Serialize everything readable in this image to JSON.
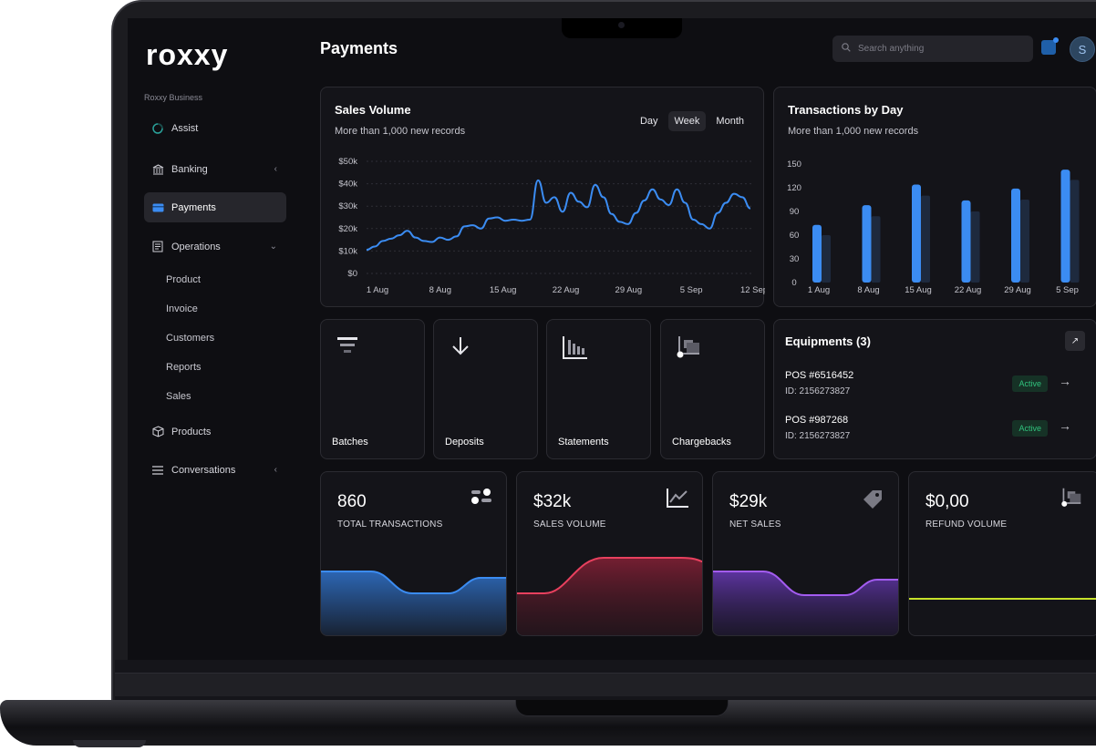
{
  "brand": {
    "logo": "roxxy",
    "section_label": "Roxxy Business"
  },
  "nav": {
    "assist": "Assist",
    "banking": "Banking",
    "payments": "Payments",
    "operations": "Operations",
    "operations_sub": [
      "Product",
      "Invoice",
      "Customers",
      "Reports",
      "Sales"
    ],
    "products": "Products",
    "conversations": "Conversations"
  },
  "header": {
    "title": "Payments",
    "search_placeholder": "Search anything",
    "avatar_initial": "S"
  },
  "sales_volume": {
    "title": "Sales Volume",
    "subtitle": "More than 1,000 new records",
    "range_options": [
      "Day",
      "Week",
      "Month"
    ],
    "selected_range": "Week"
  },
  "transactions_by_day": {
    "title": "Transactions by Day",
    "subtitle": "More than 1,000 new records"
  },
  "chart_data": [
    {
      "type": "line",
      "title": "Sales Volume",
      "x_ticks": [
        "1 Aug",
        "8 Aug",
        "15 Aug",
        "22 Aug",
        "29 Aug",
        "5 Sep",
        "12 Sep"
      ],
      "y_ticks": [
        "$0",
        "$10k",
        "$20k",
        "$30k",
        "$40k",
        "$50k"
      ],
      "ylim": [
        0,
        50000
      ],
      "grid": true,
      "series": [
        {
          "values": [
            10500,
            12000,
            14500,
            15500,
            17000,
            19000,
            16000,
            14500,
            14000,
            16000,
            15000,
            16500,
            21000,
            21500,
            20000,
            24500,
            25000,
            23500,
            24000,
            23500,
            24000,
            41500,
            31500,
            34000,
            27500,
            36000,
            32000,
            29500,
            39500,
            34000,
            26500,
            23000,
            22000,
            27000,
            32500,
            37500,
            33000,
            30500,
            37500,
            31500,
            24000,
            22000,
            20000,
            27000,
            31500,
            35500,
            34000,
            29000
          ]
        }
      ],
      "color": "#3b8cf2"
    },
    {
      "type": "bar",
      "title": "Transactions by Day",
      "categories": [
        "1 Aug",
        "8 Aug",
        "15 Aug",
        "22 Aug",
        "29 Aug",
        "5 Sep"
      ],
      "y_ticks": [
        "0",
        "30",
        "60",
        "90",
        "120",
        "150"
      ],
      "ylim": [
        0,
        150
      ],
      "series": [
        {
          "values": [
            73,
            98,
            124,
            104,
            119,
            143
          ],
          "color": "#3b8cf2"
        },
        {
          "values": [
            60,
            84,
            110,
            90,
            105,
            130
          ],
          "color": "#1e2a3e"
        }
      ]
    }
  ],
  "tiles": [
    {
      "label": "Batches",
      "icon": "filter-icon"
    },
    {
      "label": "Deposits",
      "icon": "arrow-down-icon"
    },
    {
      "label": "Statements",
      "icon": "bar-chart-icon"
    },
    {
      "label": "Chargebacks",
      "icon": "dolly-icon"
    }
  ],
  "equipments": {
    "title": "Equipments (3)",
    "items": [
      {
        "name": "POS #6516452",
        "id": "ID: 2156273827",
        "status": "Active"
      },
      {
        "name": "POS  #987268",
        "id": "ID: 2156273827",
        "status": "Active"
      }
    ]
  },
  "stats": [
    {
      "value": "860",
      "label": "TOTAL TRANSACTIONS",
      "color": "#3b8cf2",
      "icon": "toggle-icon"
    },
    {
      "value": "$32k",
      "label": "SALES VOLUME",
      "color": "#e8405e",
      "icon": "line-chart-icon"
    },
    {
      "value": "$29k",
      "label": "NET SALES",
      "color": "#a35cf0",
      "icon": "tag-icon"
    },
    {
      "value": "$0,00",
      "label": "REFUND VOLUME",
      "color": "#c8e22a",
      "icon": "dolly-icon"
    }
  ]
}
